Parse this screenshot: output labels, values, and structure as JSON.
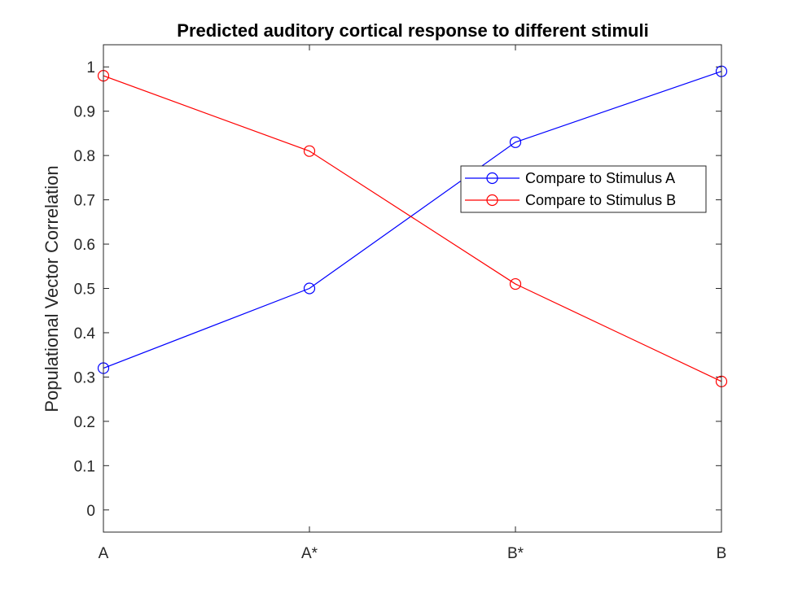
{
  "chart_data": {
    "type": "line",
    "title": "Predicted auditory cortical response to different stimuli",
    "xlabel": "",
    "ylabel": "Populational Vector Correlation",
    "categories": [
      "A",
      "A*",
      "B*",
      "B"
    ],
    "ylim": [
      -0.05,
      1.05
    ],
    "yticks": [
      0,
      0.1,
      0.2,
      0.3,
      0.4,
      0.5,
      0.6,
      0.7,
      0.8,
      0.9,
      1
    ],
    "ytick_labels": [
      "0",
      "0.1",
      "0.2",
      "0.3",
      "0.4",
      "0.5",
      "0.6",
      "0.7",
      "0.8",
      "0.9",
      "1"
    ],
    "grid": false,
    "legend_position": "right",
    "marker": "circle",
    "series": [
      {
        "name": "Compare to Stimulus A",
        "color": "#0000ff",
        "values": [
          0.32,
          0.5,
          0.83,
          0.99
        ]
      },
      {
        "name": "Compare to Stimulus B",
        "color": "#ff0000",
        "values": [
          0.98,
          0.81,
          0.51,
          0.29
        ]
      }
    ]
  }
}
